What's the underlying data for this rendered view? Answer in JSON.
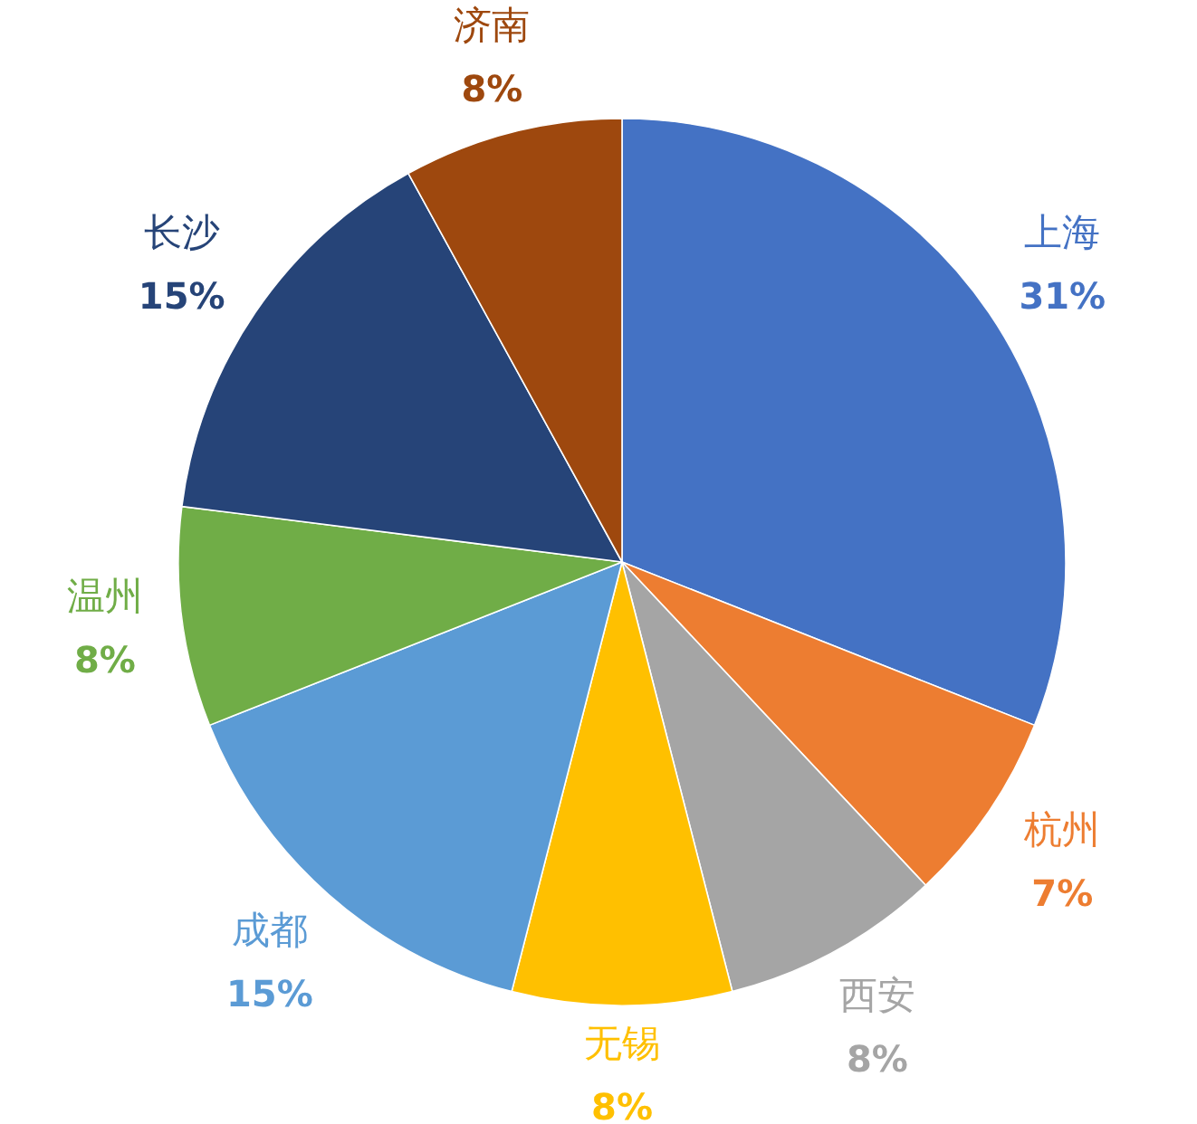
{
  "chart_data": {
    "type": "pie",
    "categories": [
      "上海",
      "杭州",
      "西安",
      "无锡",
      "成都",
      "温州",
      "长沙",
      "济南"
    ],
    "values": [
      31,
      7,
      8,
      8,
      15,
      8,
      15,
      8
    ],
    "colors": [
      "#4472c4",
      "#ed7d31",
      "#a5a5a5",
      "#ffc000",
      "#5b9bd5",
      "#70ad47",
      "#264478",
      "#9e480e"
    ],
    "value_labels": [
      "31%",
      "7%",
      "8%",
      "8%",
      "15%",
      "8%",
      "15%",
      "8%"
    ]
  }
}
